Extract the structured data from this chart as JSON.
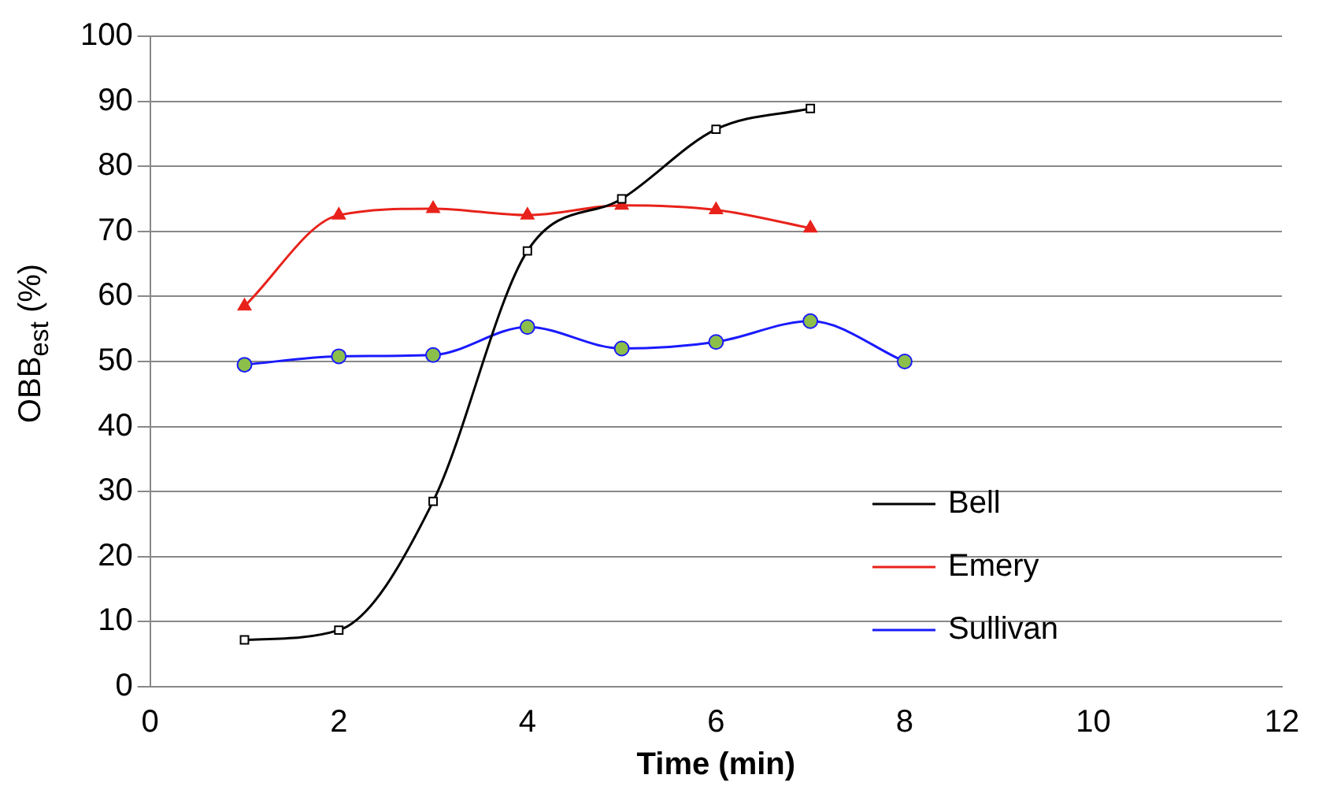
{
  "chart_data": {
    "type": "line",
    "xlabel": "Time (min)",
    "ylabel": "OBB$_{est}$ (%)",
    "xlim": [
      0,
      12
    ],
    "xticks": [
      0,
      2,
      4,
      6,
      8,
      10,
      12
    ],
    "ylim": [
      0,
      100
    ],
    "yticks": [
      0,
      10,
      20,
      30,
      40,
      50,
      60,
      70,
      80,
      90,
      100
    ],
    "grid": "y",
    "legend": "bottom right",
    "line_style": "solid",
    "series": [
      {
        "name": "Bell",
        "color": "#000000",
        "marker": "square",
        "x": [
          1,
          2,
          3,
          4,
          5,
          6,
          7
        ],
        "values": [
          7.2,
          8.7,
          28.5,
          67,
          75,
          85.7,
          88.9
        ]
      },
      {
        "name": "Emery",
        "color": "#e8221b",
        "marker": "triangle",
        "x": [
          1,
          2,
          3,
          4,
          5,
          6,
          7
        ],
        "values": [
          58.5,
          72.5,
          73.5,
          72.5,
          74,
          73.3,
          70.5
        ]
      },
      {
        "name": "Sullivan",
        "color": "#1a1aff",
        "marker": "circle",
        "x": [
          1,
          2,
          3,
          4,
          5,
          6,
          7,
          8
        ],
        "values": [
          49.5,
          50.8,
          51,
          55.3,
          52,
          53,
          56.2,
          50
        ]
      }
    ]
  }
}
